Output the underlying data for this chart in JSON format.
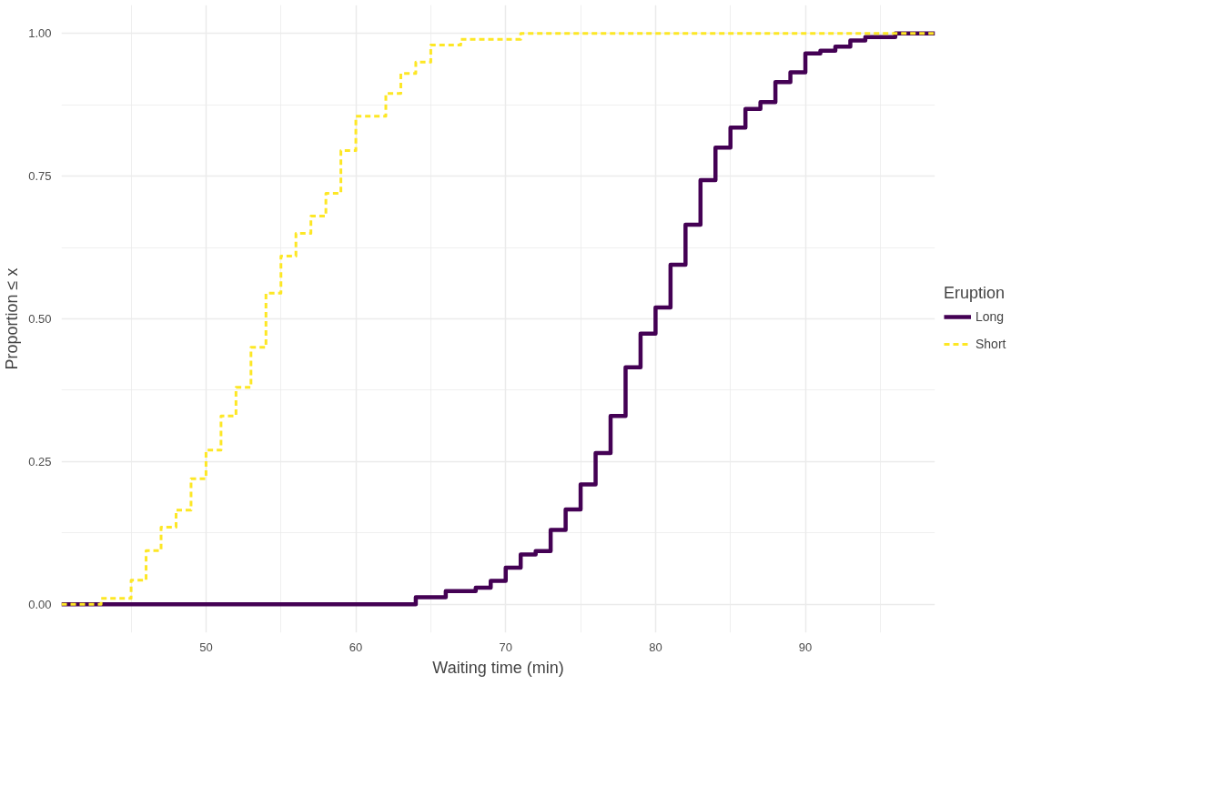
{
  "chart_data": {
    "type": "step",
    "xlabel": "Waiting time (min)",
    "ylabel": "Proportion ≤ x",
    "legend_title": "Eruption",
    "legend": "right",
    "grid": true,
    "xlim": [
      40.35,
      98.65
    ],
    "ylim": [
      -0.05,
      1.05
    ],
    "xticks": [
      50,
      60,
      70,
      80,
      90
    ],
    "yticks": [
      {
        "value": 0,
        "label": "0.00"
      },
      {
        "value": 0.25,
        "label": "0.25"
      },
      {
        "value": 0.5,
        "label": "0.50"
      },
      {
        "value": 0.75,
        "label": "0.75"
      },
      {
        "value": 1,
        "label": "1.00"
      }
    ],
    "series": [
      {
        "name": "Long",
        "color": "#440154",
        "line_style": "solid",
        "x": [
          40.35,
          64,
          66,
          68,
          69,
          70,
          71,
          72,
          73,
          74,
          75,
          76,
          77,
          78,
          79,
          80,
          81,
          82,
          83,
          84,
          85,
          86,
          87,
          88,
          89,
          90,
          91,
          92,
          93,
          94,
          96,
          98.65
        ],
        "values": [
          0,
          0.012,
          0.023,
          0.029,
          0.041,
          0.064,
          0.087,
          0.093,
          0.13,
          0.166,
          0.21,
          0.265,
          0.33,
          0.415,
          0.474,
          0.52,
          0.595,
          0.665,
          0.743,
          0.8,
          0.835,
          0.868,
          0.88,
          0.915,
          0.932,
          0.965,
          0.97,
          0.977,
          0.988,
          0.994,
          1,
          1
        ]
      },
      {
        "name": "Short",
        "color": "#fde725",
        "line_style": "dashed",
        "x": [
          40.35,
          43,
          45,
          46,
          47,
          48,
          49,
          50,
          51,
          52,
          53,
          54,
          55,
          56,
          57,
          58,
          59,
          60,
          62,
          63,
          64,
          65,
          67,
          71,
          98.65
        ],
        "values": [
          0,
          0.01,
          0.042,
          0.094,
          0.135,
          0.165,
          0.22,
          0.27,
          0.33,
          0.38,
          0.45,
          0.545,
          0.61,
          0.65,
          0.68,
          0.72,
          0.795,
          0.855,
          0.895,
          0.93,
          0.95,
          0.98,
          0.99,
          1,
          1
        ]
      }
    ]
  }
}
